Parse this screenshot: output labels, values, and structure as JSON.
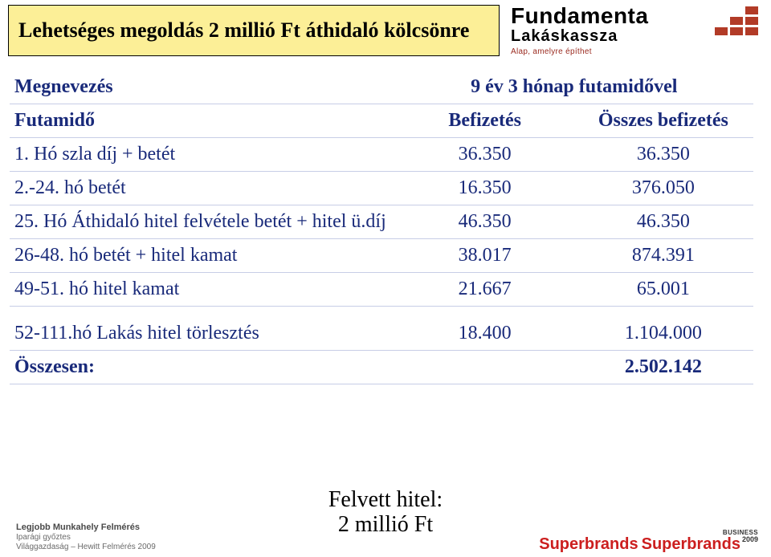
{
  "header": {
    "title": "Lehetséges megoldás 2 millió Ft áthidaló kölcsönre",
    "brand_main": "Fundamenta",
    "brand_sub": "Lakáskassza",
    "brand_tag": "Alap, amelyre építhet",
    "brick_color": "#b23b27",
    "title_bg": "#fcef97"
  },
  "table": {
    "text_color": "#192a7a",
    "border_color": "#c7cde6",
    "rows": [
      {
        "c1": "Megnevezés",
        "c2": "",
        "c3": "9 év 3 hónap futamidővel",
        "bold": true,
        "span23": true
      },
      {
        "c1": "Futamidő",
        "c2": "Befizetés",
        "c3": "Összes befizetés",
        "bold": true
      },
      {
        "c1": "1. Hó  szla díj + betét",
        "c2": "36.350",
        "c3": "36.350"
      },
      {
        "c1": "2.-24. hó  betét",
        "c2": "16.350",
        "c3": "376.050"
      },
      {
        "c1": "25. Hó Áthidaló hitel felvétele  betét + hitel ü.díj",
        "c2": "46.350",
        "c3": "46.350"
      },
      {
        "c1": "26-48. hó betét + hitel kamat",
        "c2": "38.017",
        "c3": "874.391"
      },
      {
        "c1": "49-51. hó hitel kamat",
        "c2": "21.667",
        "c3": "65.001"
      },
      {
        "c1": "52-111.hó Lakás hitel törlesztés",
        "c2": "18.400",
        "c3": "1.104.000",
        "sp": true
      },
      {
        "c1": "Összesen:",
        "c2": "",
        "c3": "2.502.142",
        "bold": true
      }
    ]
  },
  "footer": {
    "left_title": "Legjobb Munkahely Felmérés",
    "left_line2": "Iparági győztes",
    "left_line3": "Világgazdaság – Hewitt Felmérés 2009",
    "center_line1": "Felvett hitel:",
    "center_line2": "2 millió Ft",
    "sb_label": "Superbrands",
    "sb_sup": "BUSINESS",
    "sb_year": "2009"
  }
}
